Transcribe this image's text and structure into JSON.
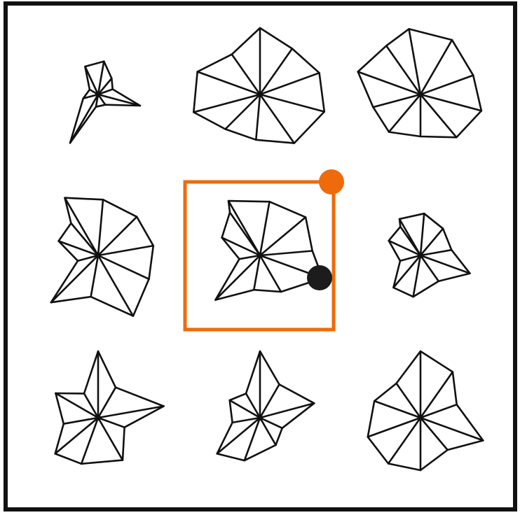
{
  "puzzle": {
    "grid": {
      "rows": 3,
      "cols": 3
    },
    "selected_cell": {
      "row": 1,
      "col": 1
    },
    "colors": {
      "frame": "#111111",
      "figure_stroke": "#111111",
      "selection": "#ef6a0a",
      "marker_orange": "#ef6a0a",
      "marker_black": "#1c1c1c",
      "background": "#ffffff"
    },
    "markers": [
      {
        "name": "orange-marker",
        "color": "orange"
      },
      {
        "name": "black-marker",
        "color": "black"
      }
    ]
  }
}
